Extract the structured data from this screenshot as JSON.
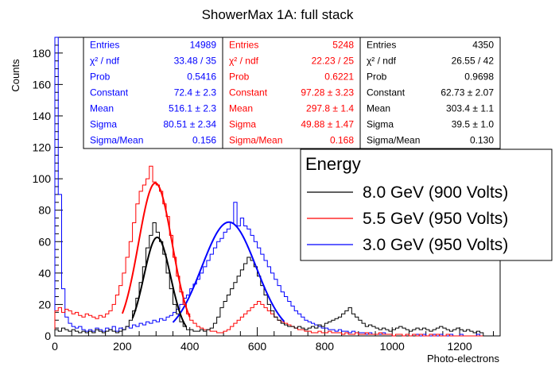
{
  "chart_data": {
    "type": "histogram",
    "title": "ShowerMax 1A: full stack",
    "xlabel": "Photo-electrons",
    "ylabel": "Counts",
    "xlim": [
      0,
      1320
    ],
    "ylim": [
      0,
      190
    ],
    "x_ticks": [
      0,
      200,
      400,
      600,
      800,
      1000,
      1200
    ],
    "y_ticks": [
      0,
      20,
      40,
      60,
      80,
      100,
      120,
      140,
      160,
      180
    ],
    "grid": false,
    "legend": {
      "title": "Energy",
      "placement": "right",
      "entries": [
        {
          "label": "8.0 GeV (900 Volts)",
          "color": "#000000"
        },
        {
          "label": "5.5 GeV (950 Volts)",
          "color": "#ff0000"
        },
        {
          "label": "3.0 GeV (950 Volts)",
          "color": "#0000ff"
        }
      ]
    },
    "stat_boxes": [
      {
        "color": "#0000ff",
        "rows": [
          {
            "label": "Entries",
            "value": "14989"
          },
          {
            "label": "χ² / ndf",
            "value": "33.48 / 35"
          },
          {
            "label": "Prob",
            "value": "0.5416"
          },
          {
            "label": "Constant",
            "value": "72.4 ± 2.3"
          },
          {
            "label": "Mean",
            "value": "516.1 ± 2.3"
          },
          {
            "label": "Sigma",
            "value": "80.51 ± 2.34"
          },
          {
            "label": "Sigma/Mean",
            "value": "0.156"
          }
        ]
      },
      {
        "color": "#ff0000",
        "rows": [
          {
            "label": "Entries",
            "value": "5248"
          },
          {
            "label": "χ² / ndf",
            "value": "22.23 / 25"
          },
          {
            "label": "Prob",
            "value": "0.6221"
          },
          {
            "label": "Constant",
            "value": "97.28 ± 3.23"
          },
          {
            "label": "Mean",
            "value": "297.8 ± 1.4"
          },
          {
            "label": "Sigma",
            "value": "49.88 ± 1.47"
          },
          {
            "label": "Sigma/Mean",
            "value": "0.168"
          }
        ]
      },
      {
        "color": "#000000",
        "rows": [
          {
            "label": "Entries",
            "value": "4350"
          },
          {
            "label": "χ² / ndf",
            "value": "26.55 / 42"
          },
          {
            "label": "Prob",
            "value": "0.9698"
          },
          {
            "label": "Constant",
            "value": "62.73 ± 2.07"
          },
          {
            "label": "Mean",
            "value": "303.4 ± 1.1"
          },
          {
            "label": "Sigma",
            "value": "39.5 ± 1.0"
          },
          {
            "label": "Sigma/Mean",
            "value": "0.130"
          }
        ]
      }
    ],
    "series": [
      {
        "color": "#0000ff",
        "fit": {
          "constant": 72.4,
          "mean": 516.1,
          "sigma": 80.51,
          "range": [
            350,
            680
          ]
        },
        "bin_width": 10,
        "x_start": 0,
        "counts": [
          190,
          90,
          30,
          12,
          8,
          6,
          5,
          6,
          4,
          3,
          4,
          3,
          5,
          4,
          3,
          5,
          4,
          6,
          3,
          5,
          4,
          6,
          5,
          7,
          6,
          8,
          7,
          9,
          8,
          10,
          9,
          11,
          10,
          12,
          13,
          15,
          17,
          20,
          24,
          26,
          30,
          33,
          36,
          40,
          44,
          48,
          52,
          56,
          60,
          62,
          66,
          68,
          72,
          85,
          70,
          75,
          70,
          68,
          64,
          60,
          56,
          52,
          48,
          44,
          40,
          36,
          32,
          28,
          25,
          22,
          19,
          16,
          14,
          12,
          10,
          9,
          8,
          7,
          6,
          5,
          5,
          4,
          4,
          3,
          4,
          3,
          3,
          2,
          3,
          2,
          2,
          2,
          1,
          2,
          1,
          1,
          1,
          2,
          1,
          1,
          0,
          1,
          1,
          0,
          1,
          0,
          1,
          1,
          0,
          1,
          0,
          0,
          1,
          0,
          1,
          0,
          0,
          1,
          0,
          0,
          1,
          0,
          0,
          0,
          0,
          1,
          0,
          0,
          0,
          0,
          0,
          0
        ]
      },
      {
        "color": "#ff0000",
        "fit": {
          "constant": 97.28,
          "mean": 297.8,
          "sigma": 49.88,
          "range": [
            200,
            400
          ]
        },
        "bin_width": 10,
        "x_start": 0,
        "counts": [
          16,
          18,
          15,
          17,
          16,
          14,
          15,
          13,
          12,
          14,
          13,
          12,
          11,
          13,
          12,
          14,
          16,
          20,
          26,
          32,
          40,
          50,
          60,
          72,
          84,
          92,
          96,
          100,
          108,
          98,
          96,
          92,
          84,
          76,
          64,
          50,
          38,
          28,
          20,
          14,
          10,
          8,
          6,
          5,
          4,
          4,
          3,
          3,
          2,
          2,
          3,
          4,
          6,
          8,
          10,
          12,
          14,
          16,
          18,
          20,
          22,
          20,
          18,
          16,
          14,
          12,
          10,
          9,
          8,
          7,
          6,
          5,
          4,
          4,
          3,
          3,
          2,
          2,
          3,
          2,
          2,
          3,
          2,
          2,
          2,
          1,
          2,
          1,
          1,
          2,
          1,
          1,
          2,
          1,
          1,
          1,
          2,
          1,
          1,
          1,
          0,
          1,
          1,
          0,
          1,
          0,
          1,
          0,
          1,
          0,
          0,
          1,
          0,
          1,
          0,
          0,
          1,
          0,
          0,
          0,
          0,
          0,
          0,
          0,
          0,
          0,
          0,
          0,
          0,
          0,
          0,
          0
        ]
      },
      {
        "color": "#000000",
        "fit": {
          "constant": 62.73,
          "mean": 303.4,
          "sigma": 39.5,
          "range": [
            230,
            390
          ]
        },
        "bin_width": 10,
        "x_start": 0,
        "counts": [
          4,
          3,
          5,
          4,
          3,
          4,
          3,
          2,
          3,
          2,
          3,
          2,
          4,
          3,
          2,
          3,
          4,
          3,
          2,
          3,
          4,
          6,
          10,
          16,
          24,
          34,
          44,
          56,
          64,
          72,
          66,
          60,
          52,
          40,
          30,
          20,
          14,
          9,
          6,
          4,
          4,
          3,
          3,
          4,
          3,
          4,
          5,
          8,
          12,
          18,
          22,
          26,
          30,
          34,
          38,
          42,
          46,
          50,
          48,
          44,
          38,
          32,
          26,
          20,
          16,
          12,
          10,
          8,
          7,
          6,
          6,
          5,
          6,
          5,
          4,
          5,
          6,
          5,
          7,
          6,
          8,
          9,
          10,
          11,
          12,
          14,
          16,
          18,
          14,
          12,
          10,
          8,
          6,
          7,
          6,
          5,
          4,
          5,
          4,
          3,
          4,
          5,
          6,
          5,
          4,
          3,
          4,
          5,
          4,
          5,
          4,
          3,
          4,
          5,
          6,
          5,
          4,
          3,
          4,
          5,
          4,
          3,
          4,
          3,
          2,
          3,
          2,
          0,
          0,
          0,
          0,
          0
        ]
      }
    ]
  }
}
